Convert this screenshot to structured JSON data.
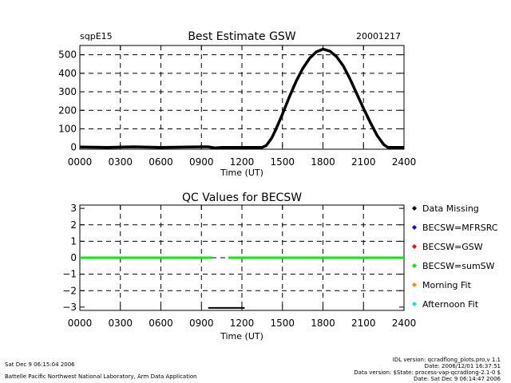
{
  "chart_data": [
    {
      "type": "line",
      "site": "sqpE15",
      "title": "Best Estimate GSW",
      "date": "20001217",
      "xlabel": "Time (UT)",
      "ylabel": "",
      "xticks": [
        "0000",
        "0300",
        "0600",
        "0900",
        "1200",
        "1500",
        "1800",
        "2100",
        "2400"
      ],
      "yticks": [
        "0",
        "100",
        "200",
        "300",
        "400",
        "500"
      ],
      "xlim": [
        0,
        24
      ],
      "ylim": [
        -10,
        550
      ],
      "grid": true,
      "series": [
        {
          "color": "#000000",
          "x": [
            0,
            2,
            4,
            6,
            8,
            9.5,
            10,
            10.5,
            11,
            12,
            13,
            13.5,
            13.8,
            14.2,
            14.5,
            15,
            15.5,
            16,
            16.5,
            17,
            17.5,
            18,
            18.5,
            19,
            19.5,
            20,
            20.5,
            21,
            21.5,
            22,
            22.5,
            22.8,
            23.2,
            23.5,
            24
          ],
          "y": [
            2,
            0,
            3,
            0,
            2,
            3,
            -3,
            0,
            0,
            0,
            0,
            0,
            10,
            50,
            95,
            180,
            270,
            355,
            425,
            480,
            515,
            530,
            520,
            490,
            440,
            370,
            290,
            210,
            135,
            65,
            15,
            0,
            0,
            0,
            0
          ]
        }
      ]
    },
    {
      "type": "line",
      "title": "QC Values for BECSW",
      "xlabel": "Time (UT)",
      "ylabel": "",
      "xticks": [
        "0000",
        "0300",
        "0600",
        "0900",
        "1200",
        "1500",
        "1800",
        "2100",
        "2400"
      ],
      "yticks": [
        "3",
        "2",
        "1",
        "0",
        "−1",
        "−2",
        "−3"
      ],
      "xlim": [
        0,
        24
      ],
      "ylim": [
        -3.2,
        3.2
      ],
      "grid": true,
      "series": [
        {
          "name": "BECSW=sumSW",
          "color": "#00ee00",
          "x": [
            0,
            9.8,
            11.0,
            24
          ],
          "y": [
            0,
            0,
            0,
            0
          ],
          "gap": [
            9.8,
            11.0
          ]
        },
        {
          "color": "#000000",
          "x": [
            9.5,
            12.2
          ],
          "y": [
            -3.05,
            -3.05
          ]
        }
      ],
      "legend": {
        "placement": "right",
        "items": [
          {
            "label": "Data Missing",
            "color": "#000000"
          },
          {
            "label": "BECSW=MFRSRC",
            "color": "#0000ff"
          },
          {
            "label": "BECSW=GSW",
            "color": "#ff0000"
          },
          {
            "label": "BECSW=sumSW",
            "color": "#00ee00"
          },
          {
            "label": "Morning Fit",
            "color": "#ff8c00"
          },
          {
            "label": "Afternoon Fit",
            "color": "#00e5ee"
          }
        ]
      }
    }
  ],
  "footer": {
    "left_line1": "Sat Dec  9 06:15:04 2006",
    "left_line2": "Battelle Pacific Northwest National Laboratory, Arm Data Application",
    "right_lines": [
      "IDL version: qcradflong_plots.pro,v 1.1",
      "Date: 2006/12/01 16:37:51",
      "Data version: $State: process-vap-qcradlong-2.1-0 $",
      "Date: Sat Dec  9 06:14:47 2006"
    ]
  }
}
